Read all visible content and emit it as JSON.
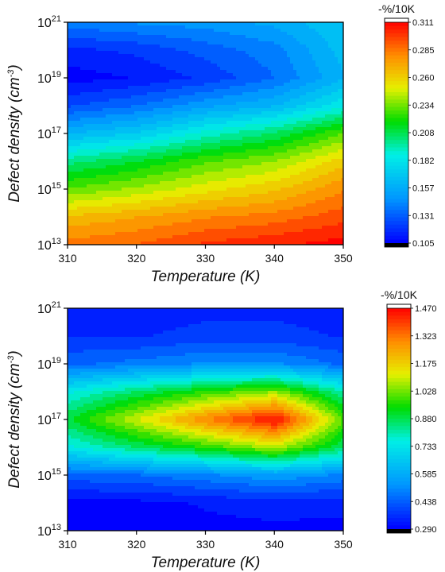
{
  "chart_data": [
    {
      "type": "heatmap",
      "title": "",
      "xlabel": "Temperature (K)",
      "ylabel": "Defect density (cm-3)",
      "x_ticks": [
        "310",
        "320",
        "330",
        "340",
        "350"
      ],
      "y_ticks": [
        {
          "base": "10",
          "exp": "13"
        },
        {
          "base": "10",
          "exp": "15"
        },
        {
          "base": "10",
          "exp": "17"
        },
        {
          "base": "10",
          "exp": "19"
        },
        {
          "base": "10",
          "exp": "21"
        }
      ],
      "xlim": [
        310,
        350
      ],
      "ylim_log10": [
        13,
        21
      ],
      "y_scale": "log",
      "colorbar_title": "-%/10K",
      "colorbar_ticks": [
        "0.311",
        "0.285",
        "0.260",
        "0.234",
        "0.208",
        "0.182",
        "0.157",
        "0.131",
        "0.105"
      ],
      "clim": [
        0.105,
        0.311
      ],
      "x": [
        310,
        320,
        330,
        340,
        350
      ],
      "y_log10": [
        13,
        14,
        15,
        16,
        17,
        18,
        19,
        20,
        21
      ],
      "z": [
        [
          0.285,
          0.29,
          0.3,
          0.305,
          0.311
        ],
        [
          0.265,
          0.272,
          0.28,
          0.285,
          0.295
        ],
        [
          0.23,
          0.24,
          0.252,
          0.262,
          0.28
        ],
        [
          0.2,
          0.212,
          0.228,
          0.238,
          0.26
        ],
        [
          0.16,
          0.17,
          0.19,
          0.205,
          0.23
        ],
        [
          0.125,
          0.135,
          0.15,
          0.16,
          0.185
        ],
        [
          0.105,
          0.11,
          0.12,
          0.135,
          0.16
        ],
        [
          0.115,
          0.12,
          0.13,
          0.14,
          0.165
        ],
        [
          0.14,
          0.145,
          0.148,
          0.155,
          0.17
        ]
      ]
    },
    {
      "type": "heatmap",
      "title": "",
      "xlabel": "Temperature (K)",
      "ylabel": "Defect density (cm-3)",
      "x_ticks": [
        "310",
        "320",
        "330",
        "340",
        "350"
      ],
      "y_ticks": [
        {
          "base": "10",
          "exp": "13"
        },
        {
          "base": "10",
          "exp": "15"
        },
        {
          "base": "10",
          "exp": "17"
        },
        {
          "base": "10",
          "exp": "19"
        },
        {
          "base": "10",
          "exp": "21"
        }
      ],
      "xlim": [
        310,
        350
      ],
      "ylim_log10": [
        13,
        21
      ],
      "y_scale": "log",
      "colorbar_title": "-%/10K",
      "colorbar_ticks": [
        "1.470",
        "1.323",
        "1.175",
        "1.028",
        "0.880",
        "0.733",
        "0.585",
        "0.438",
        "0.290"
      ],
      "clim": [
        0.29,
        1.47
      ],
      "x": [
        310,
        320,
        330,
        340,
        350
      ],
      "y_log10": [
        13,
        14,
        15,
        16,
        17,
        18,
        19,
        20,
        21
      ],
      "z": [
        [
          0.29,
          0.29,
          0.3,
          0.3,
          0.3
        ],
        [
          0.3,
          0.3,
          0.32,
          0.34,
          0.33
        ],
        [
          0.44,
          0.46,
          0.5,
          0.55,
          0.5
        ],
        [
          0.74,
          0.86,
          0.96,
          1.08,
          0.86
        ],
        [
          0.9,
          1.1,
          1.3,
          1.47,
          1.0
        ],
        [
          0.74,
          0.86,
          0.96,
          1.05,
          0.8
        ],
        [
          0.45,
          0.48,
          0.52,
          0.52,
          0.45
        ],
        [
          0.36,
          0.36,
          0.38,
          0.38,
          0.36
        ],
        [
          0.33,
          0.33,
          0.35,
          0.35,
          0.34
        ]
      ]
    }
  ]
}
